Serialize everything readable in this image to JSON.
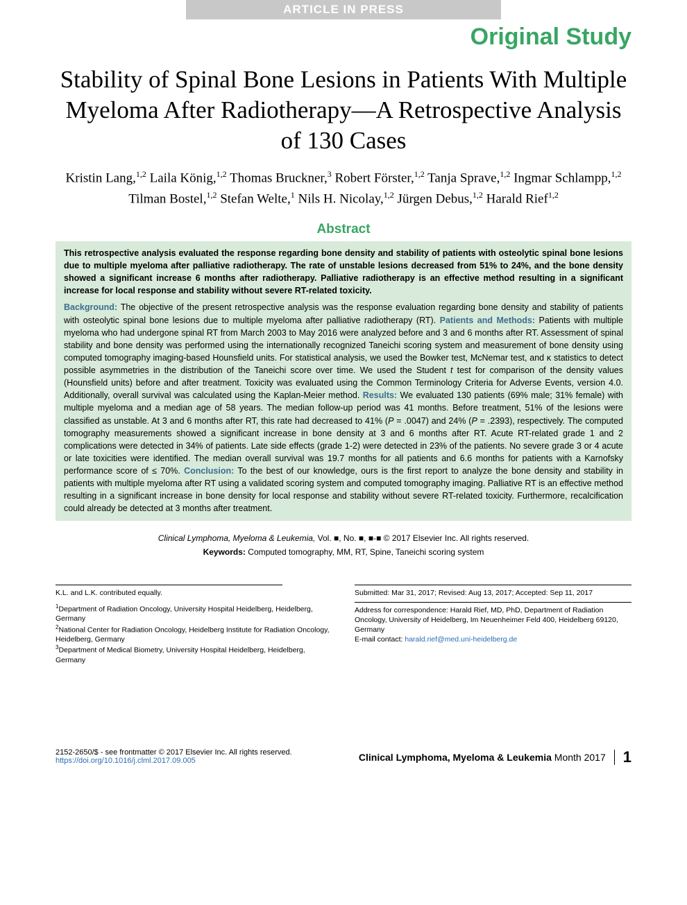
{
  "banner": "ARTICLE IN PRESS",
  "study_type": "Original Study",
  "title": "Stability of Spinal Bone Lesions in Patients With Multiple Myeloma After Radiotherapy—A Retrospective Analysis of 130 Cases",
  "authors_html": "Kristin Lang,<sup>1,2</sup> Laila König,<sup>1,2</sup> Thomas Bruckner,<sup>3</sup> Robert Förster,<sup>1,2</sup> Tanja Sprave,<sup>1,2</sup> Ingmar Schlampp,<sup>1,2</sup> Tilman Bostel,<sup>1,2</sup> Stefan Welte,<sup>1</sup> Nils H. Nicolay,<sup>1,2</sup> Jürgen Debus,<sup>1,2</sup> Harald Rief<sup>1,2</sup>",
  "abstract_heading": "Abstract",
  "summary": "This retrospective analysis evaluated the response regarding bone density and stability of patients with osteolytic spinal bone lesions due to multiple myeloma after palliative radiotherapy. The rate of unstable lesions decreased from 51% to 24%, and the bone density showed a significant increase 6 months after radiotherapy. Palliative radiotherapy is an effective method resulting in a significant increase for local response and stability without severe RT-related toxicity.",
  "abstract": {
    "background_label": "Background:",
    "background": " The objective of the present retrospective analysis was the response evaluation regarding bone density and stability of patients with osteolytic spinal bone lesions due to multiple myeloma after palliative radiotherapy (RT). ",
    "methods_label": "Patients and Methods:",
    "methods_a": " Patients with multiple myeloma who had undergone spinal RT from March 2003 to May 2016 were analyzed before and 3 and 6 months after RT. Assessment of spinal stability and bone density was performed using the internationally recognized Taneichi scoring system and measurement of bone density using computed tomography imaging-based Hounsfield units. For statistical analysis, we used the Bowker test, McNemar test, and κ statistics to detect possible asymmetries in the distribution of the Taneichi score over time. We used the Student ",
    "methods_ital": "t",
    "methods_b": " test for comparison of the density values (Hounsfield units) before and after treatment. Toxicity was evaluated using the Common Terminology Criteria for Adverse Events, version 4.0. Additionally, overall survival was calculated using the Kaplan-Meier method. ",
    "results_label": "Results:",
    "results_a": " We evaluated 130 patients (69% male; 31% female) with multiple myeloma and a median age of 58 years. The median follow-up period was 41 months. Before treatment, 51% of the lesions were classified as unstable. At 3 and 6 months after RT, this rate had decreased to 41% (",
    "results_p1i": "P",
    "results_p1": " = .0047) and 24% (",
    "results_p2i": "P",
    "results_p2": " = .2393), respectively. The computed tomography measurements showed a significant increase in bone density at 3 and 6 months after RT. Acute RT-related grade 1 and 2 complications were detected in 34% of patients. Late side effects (grade 1-2) were detected in 23% of the patients. No severe grade 3 or 4 acute or late toxicities were identified. The median overall survival was 19.7 months for all patients and 6.6 months for patients with a Karnofsky performance score of ≤ 70%. ",
    "conclusion_label": "Conclusion:",
    "conclusion": " To the best of our knowledge, ours is the first report to analyze the bone density and stability in patients with multiple myeloma after RT using a validated scoring system and computed tomography imaging. Palliative RT is an effective method resulting in a significant increase in bone density for local response and stability without severe RT-related toxicity. Furthermore, recalcification could already be detected at 3 months after treatment."
  },
  "citation": {
    "journal": "Clinical Lymphoma, Myeloma & Leukemia,",
    "vol": " Vol. ■, No. ■, ■-■ © 2017 Elsevier Inc. All rights reserved."
  },
  "keywords_label": "Keywords:",
  "keywords": " Computed tomography, MM, RT, Spine, Taneichi scoring system",
  "contrib_note": "K.L. and L.K. contributed equally.",
  "affiliations": [
    "Department of Radiation Oncology, University Hospital Heidelberg, Heidelberg, Germany",
    "National Center for Radiation Oncology, Heidelberg Institute for Radiation Oncology, Heidelberg, Germany",
    "Department of Medical Biometry, University Hospital Heidelberg, Heidelberg, Germany"
  ],
  "affil_nums": [
    "1",
    "2",
    "3"
  ],
  "history": "Submitted: Mar 31, 2017; Revised: Aug 13, 2017; Accepted: Sep 11, 2017",
  "correspondence": "Address for correspondence: Harald Rief, MD, PhD, Department of Radiation Oncology, University of Heidelberg, Im Neuenheimer Feld 400, Heidelberg 69120, Germany",
  "email_label": "E-mail contact: ",
  "email": "harald.rief@med.uni-heidelberg.de",
  "issn": "2152-2650/$ - see frontmatter © 2017 Elsevier Inc. All rights reserved.",
  "doi": "https://doi.org/10.1016/j.clml.2017.09.005",
  "journal_footer_bold": "Clinical Lymphoma, Myeloma & Leukemia",
  "journal_footer_rest": "  Month 2017",
  "page_number": "1",
  "colors": {
    "accent_green": "#39a564",
    "box_green": "#d8ead9",
    "section_blue": "#3a6e8f",
    "link_blue": "#2b6cb0",
    "banner_gray": "#c8c8c8"
  }
}
